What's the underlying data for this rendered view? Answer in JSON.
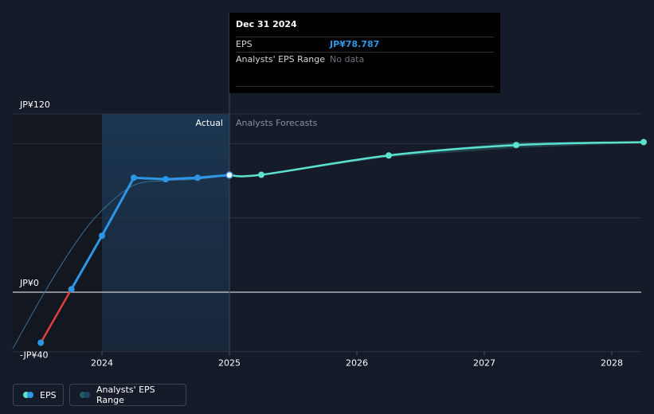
{
  "tooltip": {
    "date": "Dec 31 2024",
    "eps_label": "EPS",
    "eps_value": "JP¥78.787",
    "range_label": "Analysts' EPS Range",
    "range_value": "No data"
  },
  "legend": {
    "eps_label": "EPS",
    "range_label": "Analysts' EPS Range"
  },
  "colors": {
    "background": "#151b28",
    "eps_line": "#2e96e7",
    "eps_negative": "#e0413d",
    "forecast_line": "#5ce1cf",
    "forecast_range": "#2a5a5f",
    "actual_shade": "#193049"
  },
  "chart_data": {
    "type": "line",
    "y_tick_labels": [
      "JP¥120",
      "JP¥0",
      "-JP¥40"
    ],
    "x_tick_labels": [
      "2024",
      "2025",
      "2026",
      "2027",
      "2028"
    ],
    "region_labels": {
      "actual": "Actual",
      "forecast": "Analysts Forecasts"
    },
    "x_range": [
      2023.3,
      2028.25
    ],
    "ylim": [
      -40,
      120
    ],
    "today": 2025.0,
    "eps_history": [
      {
        "x": 2023.52,
        "y": -34
      },
      {
        "x": 2023.76,
        "y": 2
      },
      {
        "x": 2024.0,
        "y": 38
      },
      {
        "x": 2024.25,
        "y": 77
      },
      {
        "x": 2024.5,
        "y": 76
      },
      {
        "x": 2024.75,
        "y": 77
      },
      {
        "x": 2025.0,
        "y": 78.787
      }
    ],
    "eps_trend": [
      {
        "x": 2023.3,
        "y": -38
      },
      {
        "x": 2023.55,
        "y": 0
      },
      {
        "x": 2023.8,
        "y": 34
      },
      {
        "x": 2024.0,
        "y": 55
      },
      {
        "x": 2024.25,
        "y": 72
      },
      {
        "x": 2024.5,
        "y": 75
      },
      {
        "x": 2024.75,
        "y": 76
      },
      {
        "x": 2025.0,
        "y": 78.787
      }
    ],
    "forecast": [
      {
        "x": 2025.0,
        "y": 78.787
      },
      {
        "x": 2025.25,
        "y": 79
      },
      {
        "x": 2026.25,
        "y": 92
      },
      {
        "x": 2027.25,
        "y": 99
      },
      {
        "x": 2028.25,
        "y": 101
      }
    ],
    "forecast_range_high": [
      {
        "x": 2025.25,
        "y": 79.5
      },
      {
        "x": 2026.25,
        "y": 93
      },
      {
        "x": 2027.25,
        "y": 101
      },
      {
        "x": 2028.25,
        "y": 101.5
      }
    ],
    "forecast_range_low": [
      {
        "x": 2025.25,
        "y": 78.5
      },
      {
        "x": 2026.25,
        "y": 91
      },
      {
        "x": 2027.25,
        "y": 97
      },
      {
        "x": 2028.25,
        "y": 100.5
      }
    ]
  }
}
